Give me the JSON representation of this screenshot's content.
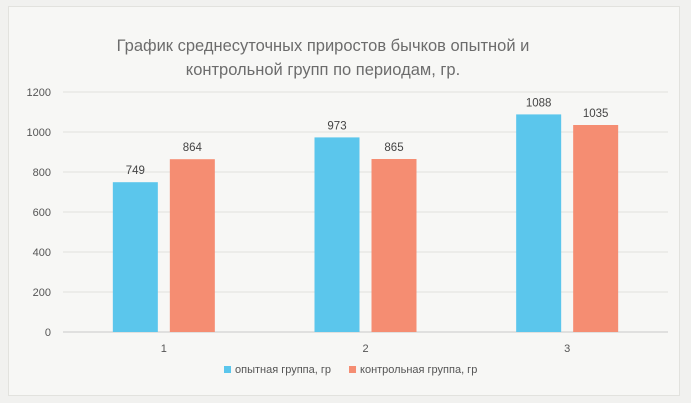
{
  "chart_data": {
    "type": "bar",
    "title_lines": [
      "График среднесуточных приростов бычков опытной и",
      "контрольной групп по периодам, гр."
    ],
    "categories": [
      "1",
      "2",
      "3"
    ],
    "series": [
      {
        "name": "опытная группа, гр",
        "values": [
          749,
          973,
          1088
        ],
        "color": "#5bc6ec"
      },
      {
        "name": "контрольная группа, гр",
        "values": [
          864,
          865,
          1035
        ],
        "color": "#f58d72"
      }
    ],
    "ylim": [
      0,
      1200
    ],
    "yticks": [
      0,
      200,
      400,
      600,
      800,
      1000,
      1200
    ],
    "grid": true,
    "legend": "bottom"
  }
}
